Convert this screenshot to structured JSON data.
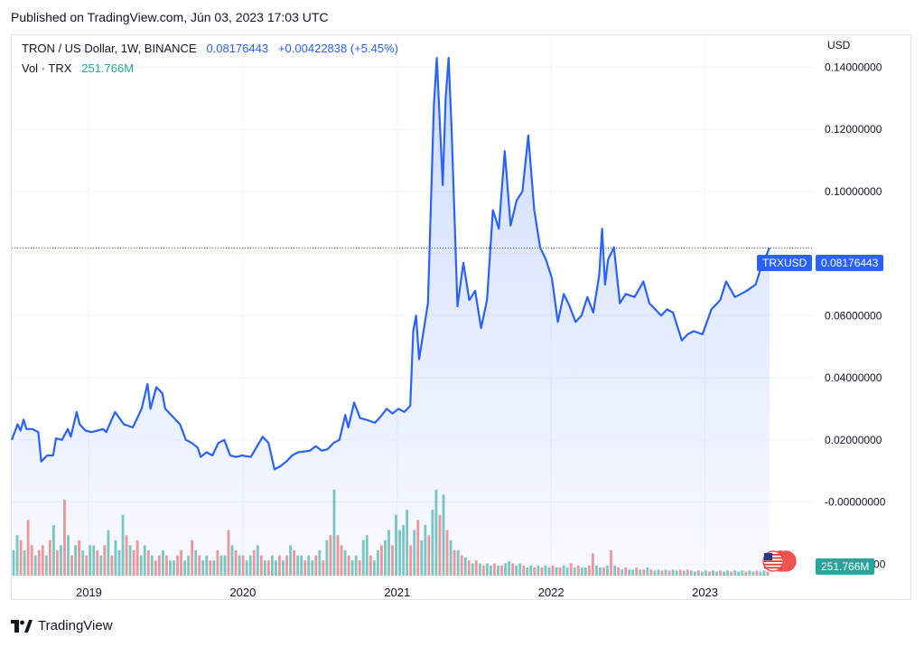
{
  "header": {
    "published": "Published on TradingView.com, Jún 03, 2023 17:03 UTC"
  },
  "legend": {
    "title": "TRON / US Dollar, 1W, BINANCE",
    "price": "0.08176443",
    "change": "+0.00422838 (+5.45%)",
    "vol_label": "Vol · TRX",
    "vol_value": "251.766M"
  },
  "axis": {
    "currency": "USD"
  },
  "tags": {
    "symbol": "TRXUSD",
    "price": "0.08176443",
    "volume": "251.766M"
  },
  "footer": {
    "brand": "TradingView"
  },
  "colors": {
    "line": "#2962ff",
    "vol_up": "#26a69a",
    "vol_down": "#ef5350",
    "grid": "#f0f3fa"
  },
  "chart_data": {
    "type": "area",
    "series": [
      {
        "name": "TRXUSD",
        "x": "date",
        "y": "close"
      }
    ],
    "x_range": [
      "2018-07-02",
      "2023-06-03"
    ],
    "ylim": [
      -0.024,
      0.15
    ],
    "y_ticks": [
      -0.02,
      0.0,
      0.02,
      0.04,
      0.06,
      0.08,
      0.1,
      0.12,
      0.14
    ],
    "y_tick_labels": [
      "-0.02000000",
      "-0.00000000",
      "0.02000000",
      "0.04000000",
      "0.06000000",
      "",
      "0.10000000",
      "0.12000000",
      "0.14000000"
    ],
    "x_ticks": [
      "2019-01-01",
      "2020-01-01",
      "2021-01-01",
      "2022-01-01",
      "2023-01-01"
    ],
    "x_tick_labels": [
      "2019",
      "2020",
      "2021",
      "2022",
      "2023"
    ],
    "last_price": 0.08176443,
    "points": [
      [
        "2018-07-02",
        0.02
      ],
      [
        "2018-07-16",
        0.025
      ],
      [
        "2018-07-23",
        0.023
      ],
      [
        "2018-07-30",
        0.0265
      ],
      [
        "2018-08-06",
        0.0235
      ],
      [
        "2018-08-20",
        0.0235
      ],
      [
        "2018-09-03",
        0.0225
      ],
      [
        "2018-09-10",
        0.013
      ],
      [
        "2018-09-24",
        0.015
      ],
      [
        "2018-10-08",
        0.015
      ],
      [
        "2018-10-15",
        0.0205
      ],
      [
        "2018-10-29",
        0.02
      ],
      [
        "2018-11-12",
        0.0235
      ],
      [
        "2018-11-19",
        0.021
      ],
      [
        "2018-12-03",
        0.029
      ],
      [
        "2018-12-10",
        0.025
      ],
      [
        "2018-12-24",
        0.023
      ],
      [
        "2019-01-07",
        0.0225
      ],
      [
        "2019-02-04",
        0.0235
      ],
      [
        "2019-02-11",
        0.0225
      ],
      [
        "2019-03-04",
        0.029
      ],
      [
        "2019-03-25",
        0.025
      ],
      [
        "2019-04-15",
        0.024
      ],
      [
        "2019-05-06",
        0.03
      ],
      [
        "2019-05-20",
        0.038
      ],
      [
        "2019-05-27",
        0.03
      ],
      [
        "2019-06-10",
        0.037
      ],
      [
        "2019-06-24",
        0.035
      ],
      [
        "2019-07-01",
        0.03
      ],
      [
        "2019-07-15",
        0.028
      ],
      [
        "2019-08-05",
        0.025
      ],
      [
        "2019-08-19",
        0.02
      ],
      [
        "2019-09-02",
        0.019
      ],
      [
        "2019-09-16",
        0.0175
      ],
      [
        "2019-09-23",
        0.0145
      ],
      [
        "2019-10-07",
        0.016
      ],
      [
        "2019-10-21",
        0.015
      ],
      [
        "2019-11-04",
        0.019
      ],
      [
        "2019-11-18",
        0.02
      ],
      [
        "2019-12-02",
        0.015
      ],
      [
        "2019-12-16",
        0.0145
      ],
      [
        "2019-12-30",
        0.015
      ],
      [
        "2020-01-20",
        0.0145
      ],
      [
        "2020-02-17",
        0.021
      ],
      [
        "2020-03-02",
        0.019
      ],
      [
        "2020-03-16",
        0.0105
      ],
      [
        "2020-03-30",
        0.0115
      ],
      [
        "2020-04-13",
        0.013
      ],
      [
        "2020-04-27",
        0.015
      ],
      [
        "2020-05-11",
        0.016
      ],
      [
        "2020-06-08",
        0.0165
      ],
      [
        "2020-06-22",
        0.018
      ],
      [
        "2020-07-06",
        0.0165
      ],
      [
        "2020-07-20",
        0.017
      ],
      [
        "2020-08-03",
        0.019
      ],
      [
        "2020-08-17",
        0.02
      ],
      [
        "2020-08-31",
        0.028
      ],
      [
        "2020-09-07",
        0.024
      ],
      [
        "2020-09-21",
        0.032
      ],
      [
        "2020-10-05",
        0.027
      ],
      [
        "2020-10-19",
        0.0265
      ],
      [
        "2020-11-09",
        0.0255
      ],
      [
        "2020-11-23",
        0.0275
      ],
      [
        "2020-12-07",
        0.03
      ],
      [
        "2020-12-21",
        0.0285
      ],
      [
        "2021-01-04",
        0.03
      ],
      [
        "2021-01-18",
        0.029
      ],
      [
        "2021-02-01",
        0.031
      ],
      [
        "2021-02-08",
        0.055
      ],
      [
        "2021-02-15",
        0.06
      ],
      [
        "2021-02-22",
        0.046
      ],
      [
        "2021-03-01",
        0.052
      ],
      [
        "2021-03-15",
        0.064
      ],
      [
        "2021-03-29",
        0.128
      ],
      [
        "2021-04-05",
        0.143
      ],
      [
        "2021-04-19",
        0.102
      ],
      [
        "2021-04-26",
        0.13
      ],
      [
        "2021-05-03",
        0.143
      ],
      [
        "2021-05-10",
        0.12
      ],
      [
        "2021-05-24",
        0.063
      ],
      [
        "2021-06-07",
        0.077
      ],
      [
        "2021-06-21",
        0.065
      ],
      [
        "2021-07-05",
        0.068
      ],
      [
        "2021-07-19",
        0.056
      ],
      [
        "2021-08-02",
        0.065
      ],
      [
        "2021-08-16",
        0.094
      ],
      [
        "2021-08-30",
        0.088
      ],
      [
        "2021-09-13",
        0.113
      ],
      [
        "2021-09-27",
        0.089
      ],
      [
        "2021-10-11",
        0.097
      ],
      [
        "2021-10-25",
        0.1
      ],
      [
        "2021-11-08",
        0.118
      ],
      [
        "2021-11-22",
        0.094
      ],
      [
        "2021-12-06",
        0.082
      ],
      [
        "2021-12-20",
        0.078
      ],
      [
        "2022-01-03",
        0.072
      ],
      [
        "2022-01-17",
        0.058
      ],
      [
        "2022-01-31",
        0.067
      ],
      [
        "2022-02-14",
        0.063
      ],
      [
        "2022-02-28",
        0.058
      ],
      [
        "2022-03-14",
        0.06
      ],
      [
        "2022-03-28",
        0.066
      ],
      [
        "2022-04-11",
        0.061
      ],
      [
        "2022-04-25",
        0.073
      ],
      [
        "2022-05-02",
        0.088
      ],
      [
        "2022-05-09",
        0.07
      ],
      [
        "2022-05-16",
        0.078
      ],
      [
        "2022-05-30",
        0.082
      ],
      [
        "2022-06-13",
        0.064
      ],
      [
        "2022-06-27",
        0.067
      ],
      [
        "2022-07-18",
        0.066
      ],
      [
        "2022-08-08",
        0.071
      ],
      [
        "2022-08-22",
        0.064
      ],
      [
        "2022-09-05",
        0.062
      ],
      [
        "2022-09-19",
        0.06
      ],
      [
        "2022-10-03",
        0.062
      ],
      [
        "2022-10-17",
        0.061
      ],
      [
        "2022-11-07",
        0.052
      ],
      [
        "2022-11-21",
        0.054
      ],
      [
        "2022-12-05",
        0.055
      ],
      [
        "2022-12-26",
        0.054
      ],
      [
        "2023-01-16",
        0.062
      ],
      [
        "2023-02-06",
        0.065
      ],
      [
        "2023-02-20",
        0.071
      ],
      [
        "2023-03-13",
        0.066
      ],
      [
        "2023-03-27",
        0.067
      ],
      [
        "2023-04-10",
        0.068
      ],
      [
        "2023-05-01",
        0.07
      ],
      [
        "2023-05-15",
        0.076
      ],
      [
        "2023-06-03",
        0.0818
      ]
    ],
    "volume": {
      "scale_max": 1.0,
      "bars": [
        [
          0.25,
          1
        ],
        [
          0.4,
          1
        ],
        [
          0.35,
          0
        ],
        [
          0.25,
          1
        ],
        [
          0.55,
          0
        ],
        [
          0.3,
          0
        ],
        [
          0.2,
          1
        ],
        [
          0.25,
          0
        ],
        [
          0.3,
          0
        ],
        [
          0.2,
          1
        ],
        [
          0.35,
          0
        ],
        [
          0.5,
          1
        ],
        [
          0.25,
          0
        ],
        [
          0.3,
          1
        ],
        [
          0.75,
          0
        ],
        [
          0.4,
          1
        ],
        [
          0.2,
          0
        ],
        [
          0.3,
          1
        ],
        [
          0.35,
          0
        ],
        [
          0.25,
          1
        ],
        [
          0.2,
          0
        ],
        [
          0.3,
          1
        ],
        [
          0.3,
          1
        ],
        [
          0.25,
          0
        ],
        [
          0.2,
          1
        ],
        [
          0.3,
          0
        ],
        [
          0.45,
          1
        ],
        [
          0.2,
          0
        ],
        [
          0.35,
          1
        ],
        [
          0.25,
          1
        ],
        [
          0.6,
          1
        ],
        [
          0.4,
          0
        ],
        [
          0.3,
          1
        ],
        [
          0.25,
          0
        ],
        [
          0.35,
          0
        ],
        [
          0.2,
          1
        ],
        [
          0.3,
          1
        ],
        [
          0.25,
          0
        ],
        [
          0.2,
          1
        ],
        [
          0.15,
          0
        ],
        [
          0.2,
          0
        ],
        [
          0.25,
          1
        ],
        [
          0.2,
          0
        ],
        [
          0.15,
          1
        ],
        [
          0.15,
          1
        ],
        [
          0.2,
          0
        ],
        [
          0.25,
          0
        ],
        [
          0.15,
          1
        ],
        [
          0.2,
          1
        ],
        [
          0.35,
          0
        ],
        [
          0.25,
          1
        ],
        [
          0.2,
          0
        ],
        [
          0.15,
          1
        ],
        [
          0.2,
          1
        ],
        [
          0.15,
          0
        ],
        [
          0.15,
          1
        ],
        [
          0.25,
          0
        ],
        [
          0.2,
          1
        ],
        [
          0.2,
          1
        ],
        [
          0.45,
          0
        ],
        [
          0.3,
          1
        ],
        [
          0.25,
          0
        ],
        [
          0.2,
          1
        ],
        [
          0.2,
          0
        ],
        [
          0.15,
          1
        ],
        [
          0.2,
          1
        ],
        [
          0.25,
          0
        ],
        [
          0.3,
          1
        ],
        [
          0.2,
          0
        ],
        [
          0.15,
          1
        ],
        [
          0.15,
          0
        ],
        [
          0.2,
          1
        ],
        [
          0.15,
          1
        ],
        [
          0.2,
          0
        ],
        [
          0.15,
          1
        ],
        [
          0.2,
          0
        ],
        [
          0.3,
          1
        ],
        [
          0.25,
          0
        ],
        [
          0.2,
          1
        ],
        [
          0.2,
          1
        ],
        [
          0.15,
          0
        ],
        [
          0.2,
          1
        ],
        [
          0.15,
          1
        ],
        [
          0.2,
          0
        ],
        [
          0.25,
          1
        ],
        [
          0.15,
          0
        ],
        [
          0.35,
          1
        ],
        [
          0.4,
          0
        ],
        [
          0.85,
          1
        ],
        [
          0.4,
          0
        ],
        [
          0.3,
          0
        ],
        [
          0.25,
          1
        ],
        [
          0.2,
          0
        ],
        [
          0.15,
          1
        ],
        [
          0.2,
          1
        ],
        [
          0.15,
          0
        ],
        [
          0.35,
          1
        ],
        [
          0.4,
          1
        ],
        [
          0.2,
          0
        ],
        [
          0.15,
          1
        ],
        [
          0.25,
          1
        ],
        [
          0.3,
          0
        ],
        [
          0.35,
          1
        ],
        [
          0.45,
          1
        ],
        [
          0.3,
          0
        ],
        [
          0.6,
          1
        ],
        [
          0.45,
          1
        ],
        [
          0.5,
          1
        ],
        [
          0.65,
          1
        ],
        [
          0.3,
          0
        ],
        [
          0.45,
          1
        ],
        [
          0.55,
          0
        ],
        [
          0.35,
          1
        ],
        [
          0.5,
          1
        ],
        [
          0.4,
          0
        ],
        [
          0.65,
          1
        ],
        [
          0.85,
          1
        ],
        [
          0.6,
          0
        ],
        [
          0.8,
          1
        ],
        [
          0.45,
          0
        ],
        [
          0.35,
          1
        ],
        [
          0.25,
          0
        ],
        [
          0.25,
          1
        ],
        [
          0.2,
          0
        ],
        [
          0.18,
          1
        ],
        [
          0.15,
          0
        ],
        [
          0.12,
          1
        ],
        [
          0.15,
          0
        ],
        [
          0.12,
          1
        ],
        [
          0.1,
          0
        ],
        [
          0.12,
          1
        ],
        [
          0.1,
          1
        ],
        [
          0.12,
          0
        ],
        [
          0.1,
          1
        ],
        [
          0.1,
          0
        ],
        [
          0.12,
          1
        ],
        [
          0.14,
          1
        ],
        [
          0.12,
          0
        ],
        [
          0.1,
          1
        ],
        [
          0.12,
          1
        ],
        [
          0.1,
          0
        ],
        [
          0.08,
          1
        ],
        [
          0.1,
          1
        ],
        [
          0.08,
          0
        ],
        [
          0.1,
          1
        ],
        [
          0.08,
          0
        ],
        [
          0.1,
          1
        ],
        [
          0.08,
          1
        ],
        [
          0.1,
          0
        ],
        [
          0.08,
          1
        ],
        [
          0.08,
          0
        ],
        [
          0.1,
          1
        ],
        [
          0.08,
          1
        ],
        [
          0.12,
          0
        ],
        [
          0.08,
          1
        ],
        [
          0.1,
          0
        ],
        [
          0.08,
          1
        ],
        [
          0.08,
          1
        ],
        [
          0.1,
          0
        ],
        [
          0.22,
          0
        ],
        [
          0.1,
          1
        ],
        [
          0.08,
          1
        ],
        [
          0.08,
          0
        ],
        [
          0.1,
          1
        ],
        [
          0.25,
          0
        ],
        [
          0.1,
          1
        ],
        [
          0.08,
          0
        ],
        [
          0.06,
          1
        ],
        [
          0.08,
          0
        ],
        [
          0.06,
          1
        ],
        [
          0.06,
          1
        ],
        [
          0.08,
          0
        ],
        [
          0.06,
          1
        ],
        [
          0.06,
          0
        ],
        [
          0.08,
          1
        ],
        [
          0.06,
          0
        ],
        [
          0.05,
          1
        ],
        [
          0.06,
          1
        ],
        [
          0.05,
          0
        ],
        [
          0.06,
          1
        ],
        [
          0.05,
          0
        ],
        [
          0.06,
          1
        ],
        [
          0.05,
          1
        ],
        [
          0.06,
          0
        ],
        [
          0.05,
          1
        ],
        [
          0.06,
          0
        ],
        [
          0.05,
          1
        ],
        [
          0.04,
          1
        ],
        [
          0.05,
          0
        ],
        [
          0.04,
          1
        ],
        [
          0.05,
          1
        ],
        [
          0.04,
          0
        ],
        [
          0.05,
          1
        ],
        [
          0.04,
          1
        ],
        [
          0.05,
          0
        ],
        [
          0.04,
          1
        ],
        [
          0.05,
          1
        ],
        [
          0.04,
          0
        ],
        [
          0.05,
          1
        ],
        [
          0.04,
          1
        ],
        [
          0.05,
          1
        ],
        [
          0.04,
          0
        ],
        [
          0.05,
          1
        ],
        [
          0.04,
          1
        ],
        [
          0.05,
          0
        ],
        [
          0.04,
          1
        ],
        [
          0.05,
          1
        ],
        [
          0.04,
          0
        ]
      ]
    }
  }
}
